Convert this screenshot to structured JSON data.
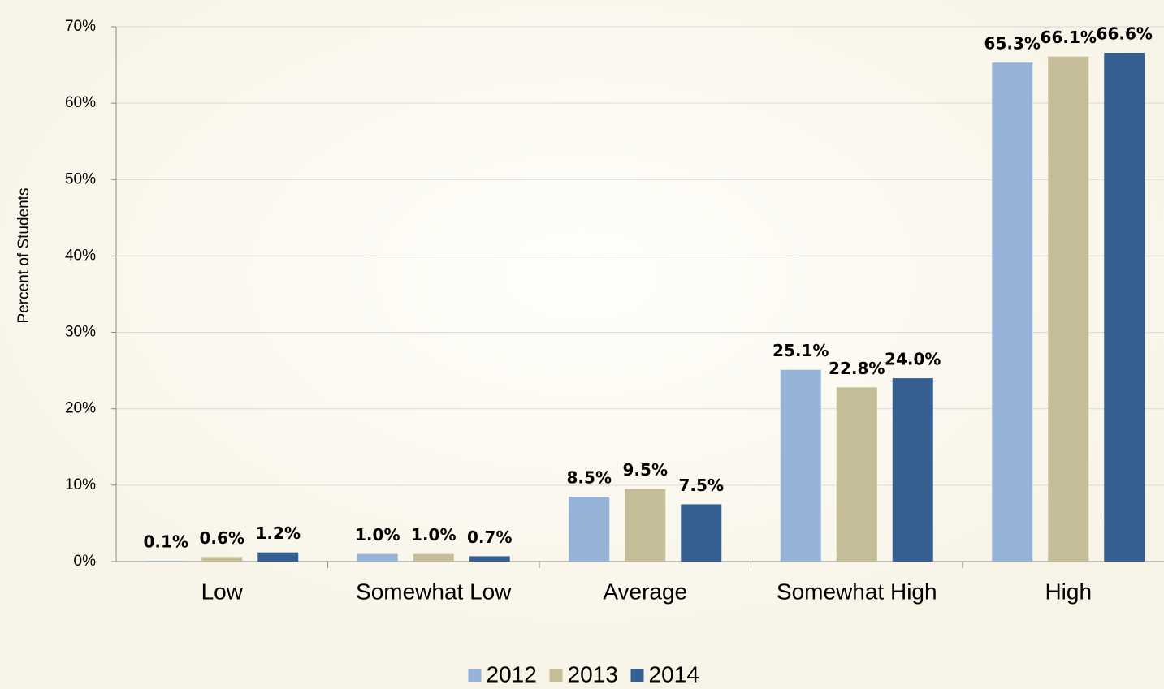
{
  "chart_data": {
    "type": "bar",
    "y_label": "Percent of Students",
    "categories": [
      "Low",
      "Somewhat Low",
      "Average",
      "Somewhat High",
      "High"
    ],
    "series": [
      {
        "name": "2012",
        "color": "#95b3d7",
        "values": [
          0.1,
          1.0,
          8.5,
          25.1,
          65.3
        ],
        "value_labels": [
          "0.1%",
          "1.0%",
          "8.5%",
          "25.1%",
          "65.3%"
        ]
      },
      {
        "name": "2013",
        "color": "#c4bd97",
        "values": [
          0.6,
          1.0,
          9.5,
          22.8,
          66.1
        ],
        "value_labels": [
          "0.6%",
          "1.0%",
          "9.5%",
          "22.8%",
          "66.1%"
        ]
      },
      {
        "name": "2014",
        "color": "#376092",
        "values": [
          1.2,
          0.7,
          7.5,
          24.0,
          66.6
        ],
        "value_labels": [
          "1.2%",
          "0.7%",
          "7.5%",
          "24.0%",
          "66.6%"
        ]
      }
    ],
    "ylim": [
      0,
      70
    ],
    "yticks": [
      {
        "value": 0,
        "label": "0%"
      },
      {
        "value": 10,
        "label": "10%"
      },
      {
        "value": 20,
        "label": "20%"
      },
      {
        "value": 30,
        "label": "30%"
      },
      {
        "value": 40,
        "label": "40%"
      },
      {
        "value": 50,
        "label": "50%"
      },
      {
        "value": 60,
        "label": "60%"
      },
      {
        "value": 70,
        "label": "70%"
      }
    ],
    "grid": true,
    "legend": "bottom"
  }
}
